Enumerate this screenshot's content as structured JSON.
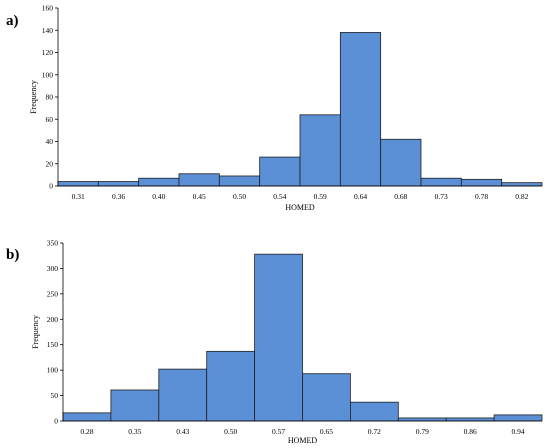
{
  "chart_data": [
    {
      "type": "bar",
      "panel_label": "a)",
      "categories": [
        "0.31",
        "0.36",
        "0.40",
        "0.45",
        "0.50",
        "0.54",
        "0.59",
        "0.64",
        "0.68",
        "0.73",
        "0.78",
        "0.82"
      ],
      "values": [
        4,
        4,
        7,
        11,
        9,
        26,
        64,
        138,
        42,
        7,
        6,
        3
      ],
      "xlabel": "HOMED",
      "ylabel": "Frequency",
      "ylim": [
        0,
        160
      ],
      "yticks": [
        0,
        20,
        40,
        60,
        80,
        100,
        120,
        140,
        160
      ],
      "grid": false,
      "color": "#5b8fd6"
    },
    {
      "type": "bar",
      "panel_label": "b)",
      "categories": [
        "0.28",
        "0.35",
        "0.43",
        "0.50",
        "0.57",
        "0.65",
        "0.72",
        "0.79",
        "0.86",
        "0.94"
      ],
      "values": [
        16,
        61,
        102,
        137,
        328,
        93,
        37,
        6,
        6,
        12
      ],
      "xlabel": "HOMED",
      "ylabel": "Frequency",
      "ylim": [
        0,
        350
      ],
      "yticks": [
        0,
        50,
        100,
        150,
        200,
        250,
        300,
        350
      ],
      "grid": false,
      "color": "#5b8fd6"
    }
  ]
}
